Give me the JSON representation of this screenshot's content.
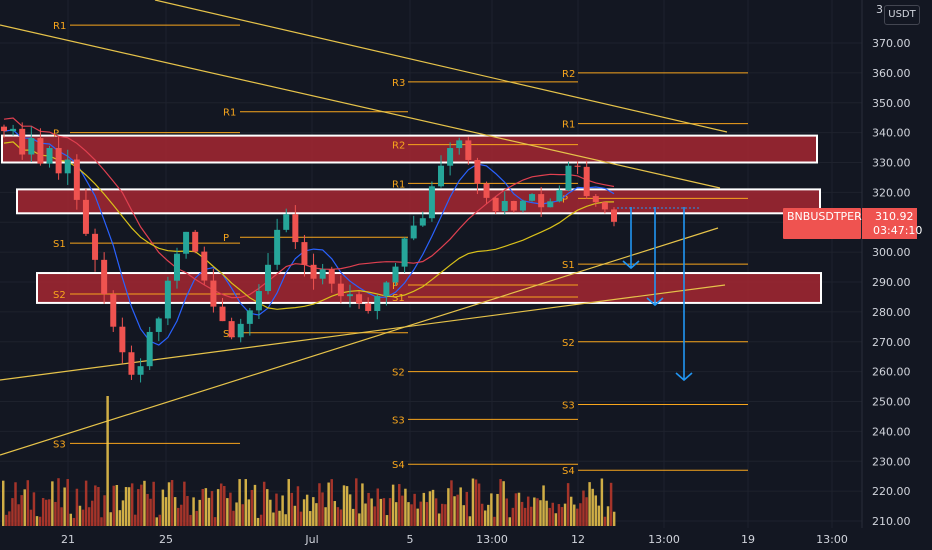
{
  "currency": "USDT",
  "symbol_tag": {
    "symbol": "BNBUSDTPERP",
    "price": "310.92",
    "countdown": "03:47:10"
  },
  "colors": {
    "background": "#131722",
    "grid": "#1e222d",
    "bull": "#26a69a",
    "bear": "#ef5350",
    "zone_fill": "#b22833",
    "pivot": "#f7a51c",
    "trend": "#e6c34a",
    "ma_blue": "#2962ff",
    "ma_red": "#e04050",
    "ma_yellow": "#d9c11a",
    "arrow": "#2196f3",
    "tag": "#ef5350"
  },
  "chart_data": {
    "type": "candlestick",
    "y_axis": {
      "range": [
        205,
        382
      ],
      "ticks": [
        "370.00",
        "360.00",
        "350.00",
        "340.00",
        "330.00",
        "320.00",
        "310.00",
        "300.00",
        "290.00",
        "280.00",
        "270.00",
        "260.00",
        "250.00",
        "240.00",
        "230.00",
        "220.00",
        "210.00"
      ],
      "top_partial_label": "3"
    },
    "x_axis": {
      "ticks": [
        "21",
        "25",
        "Jul",
        "5",
        "13:00",
        "12",
        "13:00",
        "19",
        "13:00"
      ]
    },
    "resistance_support_zones": [
      {
        "low": 330,
        "high": 339
      },
      {
        "low": 313,
        "high": 321
      },
      {
        "low": 283,
        "high": 293
      }
    ],
    "pivot_levels": [
      {
        "label": "R1",
        "level": 376
      },
      {
        "label": "P",
        "level": 340
      },
      {
        "label": "S1",
        "level": 303
      },
      {
        "label": "S2",
        "level": 286
      },
      {
        "label": "S3",
        "level": 236
      },
      {
        "label": "R1",
        "level": 347
      },
      {
        "label": "P",
        "level": 305
      },
      {
        "label": "S1",
        "level": 273
      },
      {
        "label": "R3",
        "level": 357
      },
      {
        "label": "R2",
        "level": 336
      },
      {
        "label": "R1",
        "level": 323
      },
      {
        "label": "P",
        "level": 289
      },
      {
        "label": "S1",
        "level": 285
      },
      {
        "label": "S2",
        "level": 260
      },
      {
        "label": "S3",
        "level": 244
      },
      {
        "label": "S4",
        "level": 229
      },
      {
        "label": "R2",
        "level": 360
      },
      {
        "label": "R1",
        "level": 343
      },
      {
        "label": "P",
        "level": 318
      },
      {
        "label": "S1",
        "level": 296
      },
      {
        "label": "S2",
        "level": 270
      },
      {
        "label": "S3",
        "level": 249
      },
      {
        "label": "S4",
        "level": 227
      }
    ],
    "price_path": [
      342,
      340,
      334,
      338,
      330,
      335,
      326,
      332,
      318,
      306,
      296,
      285,
      276,
      265,
      258,
      262,
      272,
      278,
      290,
      300,
      306,
      300,
      290,
      282,
      278,
      272,
      276,
      282,
      288,
      296,
      306,
      312,
      304,
      296,
      292,
      294,
      288,
      284,
      286,
      282,
      280,
      284,
      290,
      296,
      304,
      308,
      312,
      322,
      330,
      336,
      338,
      332,
      322,
      318,
      314,
      316,
      314,
      318,
      320,
      316,
      318,
      322,
      328,
      330,
      320,
      318,
      314,
      310.92
    ],
    "drawn_arrows": 3
  }
}
